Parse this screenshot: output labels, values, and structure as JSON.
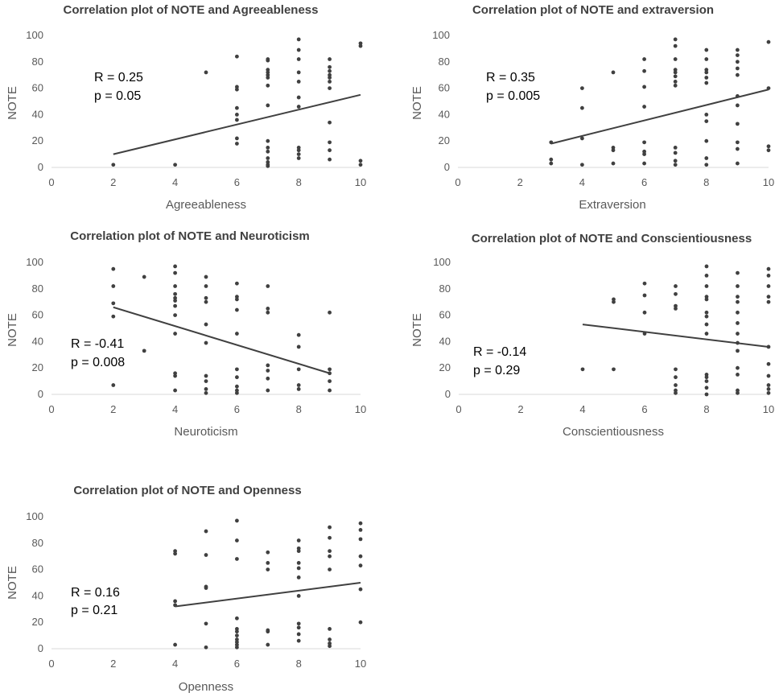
{
  "chart_data": [
    {
      "type": "scatter",
      "title": "Correlation plot of NOTE and Agreeableness",
      "xlabel": "Agreeableness",
      "ylabel": "NOTE",
      "xlim": [
        0,
        10
      ],
      "ylim": [
        0,
        100
      ],
      "xticks": [
        0,
        2,
        4,
        6,
        8,
        10
      ],
      "yticks": [
        0,
        20,
        40,
        60,
        80,
        100
      ],
      "stat_r": "R = 0.25",
      "stat_p": "p = 0.05",
      "trendline": {
        "x": [
          2,
          10
        ],
        "y": [
          10,
          55
        ]
      },
      "points": [
        [
          2,
          2
        ],
        [
          4,
          2
        ],
        [
          5,
          72
        ],
        [
          6,
          84
        ],
        [
          6,
          61
        ],
        [
          6,
          59
        ],
        [
          6,
          45
        ],
        [
          6,
          40
        ],
        [
          6,
          36
        ],
        [
          6,
          22
        ],
        [
          6,
          18
        ],
        [
          7,
          82
        ],
        [
          7,
          81
        ],
        [
          7,
          74
        ],
        [
          7,
          72
        ],
        [
          7,
          70
        ],
        [
          7,
          68
        ],
        [
          7,
          62
        ],
        [
          7,
          47
        ],
        [
          7,
          20
        ],
        [
          7,
          15
        ],
        [
          7,
          12
        ],
        [
          7,
          7
        ],
        [
          7,
          4
        ],
        [
          7,
          2
        ],
        [
          7,
          1
        ],
        [
          8,
          97
        ],
        [
          8,
          89
        ],
        [
          8,
          82
        ],
        [
          8,
          72
        ],
        [
          8,
          65
        ],
        [
          8,
          53
        ],
        [
          8,
          46
        ],
        [
          8,
          15
        ],
        [
          8,
          13
        ],
        [
          8,
          10
        ],
        [
          8,
          7
        ],
        [
          9,
          82
        ],
        [
          9,
          76
        ],
        [
          9,
          73
        ],
        [
          9,
          70
        ],
        [
          9,
          68
        ],
        [
          9,
          65
        ],
        [
          9,
          60
        ],
        [
          9,
          34
        ],
        [
          9,
          19
        ],
        [
          9,
          13
        ],
        [
          9,
          6
        ],
        [
          10,
          94
        ],
        [
          10,
          92
        ],
        [
          10,
          5
        ],
        [
          10,
          2
        ]
      ]
    },
    {
      "type": "scatter",
      "title": "Correlation plot of NOTE and extraversion",
      "xlabel": "Extraversion",
      "ylabel": "NOTE",
      "xlim": [
        0,
        10
      ],
      "ylim": [
        0,
        100
      ],
      "xticks": [
        0,
        2,
        4,
        6,
        8,
        10
      ],
      "yticks": [
        0,
        20,
        40,
        60,
        80,
        100
      ],
      "stat_r": "R = 0.35",
      "stat_p": "p = 0.005",
      "trendline": {
        "x": [
          3,
          10
        ],
        "y": [
          18,
          59
        ]
      },
      "points": [
        [
          3,
          19
        ],
        [
          3,
          6
        ],
        [
          3,
          3
        ],
        [
          4,
          60
        ],
        [
          4,
          45
        ],
        [
          4,
          22
        ],
        [
          4,
          2
        ],
        [
          5,
          72
        ],
        [
          5,
          15
        ],
        [
          5,
          13
        ],
        [
          5,
          3
        ],
        [
          6,
          82
        ],
        [
          6,
          73
        ],
        [
          6,
          61
        ],
        [
          6,
          46
        ],
        [
          6,
          19
        ],
        [
          6,
          12
        ],
        [
          6,
          10
        ],
        [
          6,
          3
        ],
        [
          7,
          97
        ],
        [
          7,
          92
        ],
        [
          7,
          82
        ],
        [
          7,
          74
        ],
        [
          7,
          72
        ],
        [
          7,
          69
        ],
        [
          7,
          65
        ],
        [
          7,
          62
        ],
        [
          7,
          15
        ],
        [
          7,
          11
        ],
        [
          7,
          5
        ],
        [
          7,
          2
        ],
        [
          8,
          89
        ],
        [
          8,
          82
        ],
        [
          8,
          74
        ],
        [
          8,
          72
        ],
        [
          8,
          68
        ],
        [
          8,
          64
        ],
        [
          8,
          40
        ],
        [
          8,
          35
        ],
        [
          8,
          20
        ],
        [
          8,
          7
        ],
        [
          8,
          2
        ],
        [
          9,
          89
        ],
        [
          9,
          85
        ],
        [
          9,
          80
        ],
        [
          9,
          75
        ],
        [
          9,
          70
        ],
        [
          9,
          54
        ],
        [
          9,
          47
        ],
        [
          9,
          33
        ],
        [
          9,
          19
        ],
        [
          9,
          14
        ],
        [
          9,
          3
        ],
        [
          10,
          95
        ],
        [
          10,
          60
        ],
        [
          10,
          16
        ],
        [
          10,
          13
        ]
      ]
    },
    {
      "type": "scatter",
      "title": "Correlation plot of NOTE and Neuroticism",
      "xlabel": "Neuroticism",
      "ylabel": "NOTE",
      "xlim": [
        0,
        10
      ],
      "ylim": [
        0,
        100
      ],
      "xticks": [
        0,
        2,
        4,
        6,
        8,
        10
      ],
      "yticks": [
        0,
        20,
        40,
        60,
        80,
        100
      ],
      "stat_r": "R = -0.41",
      "stat_p": "p = 0.008",
      "trendline": {
        "x": [
          2,
          9
        ],
        "y": [
          66,
          16
        ]
      },
      "points": [
        [
          2,
          95
        ],
        [
          2,
          82
        ],
        [
          2,
          69
        ],
        [
          2,
          59
        ],
        [
          2,
          7
        ],
        [
          3,
          89
        ],
        [
          3,
          33
        ],
        [
          4,
          97
        ],
        [
          4,
          92
        ],
        [
          4,
          82
        ],
        [
          4,
          76
        ],
        [
          4,
          73
        ],
        [
          4,
          71
        ],
        [
          4,
          67
        ],
        [
          4,
          60
        ],
        [
          4,
          46
        ],
        [
          4,
          16
        ],
        [
          4,
          14
        ],
        [
          4,
          3
        ],
        [
          5,
          89
        ],
        [
          5,
          82
        ],
        [
          5,
          73
        ],
        [
          5,
          70
        ],
        [
          5,
          53
        ],
        [
          5,
          39
        ],
        [
          5,
          14
        ],
        [
          5,
          10
        ],
        [
          5,
          4
        ],
        [
          5,
          1
        ],
        [
          6,
          84
        ],
        [
          6,
          74
        ],
        [
          6,
          72
        ],
        [
          6,
          64
        ],
        [
          6,
          46
        ],
        [
          6,
          19
        ],
        [
          6,
          13
        ],
        [
          6,
          6
        ],
        [
          6,
          3
        ],
        [
          6,
          1
        ],
        [
          7,
          82
        ],
        [
          7,
          65
        ],
        [
          7,
          62
        ],
        [
          7,
          22
        ],
        [
          7,
          18
        ],
        [
          7,
          12
        ],
        [
          7,
          3
        ],
        [
          8,
          45
        ],
        [
          8,
          36
        ],
        [
          8,
          19
        ],
        [
          8,
          7
        ],
        [
          8,
          4
        ],
        [
          9,
          62
        ],
        [
          9,
          19
        ],
        [
          9,
          16
        ],
        [
          9,
          10
        ],
        [
          9,
          3
        ]
      ]
    },
    {
      "type": "scatter",
      "title": "Correlation plot of NOTE and Conscientiousness",
      "xlabel": "Conscientiousness",
      "ylabel": "NOTE",
      "xlim": [
        0,
        10
      ],
      "ylim": [
        0,
        100
      ],
      "xticks": [
        0,
        2,
        4,
        6,
        8,
        10
      ],
      "yticks": [
        0,
        20,
        40,
        60,
        80,
        100
      ],
      "stat_r": "R = -0.14",
      "stat_p": "p = 0.29",
      "trendline": {
        "x": [
          4,
          10
        ],
        "y": [
          53,
          36
        ]
      },
      "points": [
        [
          4,
          19
        ],
        [
          5,
          72
        ],
        [
          5,
          70
        ],
        [
          5,
          19
        ],
        [
          6,
          84
        ],
        [
          6,
          75
        ],
        [
          6,
          62
        ],
        [
          6,
          46
        ],
        [
          7,
          82
        ],
        [
          7,
          76
        ],
        [
          7,
          67
        ],
        [
          7,
          65
        ],
        [
          7,
          19
        ],
        [
          7,
          13
        ],
        [
          7,
          7
        ],
        [
          7,
          3
        ],
        [
          7,
          1
        ],
        [
          8,
          97
        ],
        [
          8,
          90
        ],
        [
          8,
          82
        ],
        [
          8,
          74
        ],
        [
          8,
          72
        ],
        [
          8,
          62
        ],
        [
          8,
          59
        ],
        [
          8,
          53
        ],
        [
          8,
          46
        ],
        [
          8,
          15
        ],
        [
          8,
          13
        ],
        [
          8,
          10
        ],
        [
          8,
          5
        ],
        [
          8,
          0
        ],
        [
          9,
          92
        ],
        [
          9,
          82
        ],
        [
          9,
          74
        ],
        [
          9,
          70
        ],
        [
          9,
          62
        ],
        [
          9,
          54
        ],
        [
          9,
          46
        ],
        [
          9,
          39
        ],
        [
          9,
          33
        ],
        [
          9,
          20
        ],
        [
          9,
          15
        ],
        [
          9,
          3
        ],
        [
          9,
          1
        ],
        [
          10,
          95
        ],
        [
          10,
          90
        ],
        [
          10,
          82
        ],
        [
          10,
          74
        ],
        [
          10,
          70
        ],
        [
          10,
          36
        ],
        [
          10,
          23
        ],
        [
          10,
          14
        ],
        [
          10,
          7
        ],
        [
          10,
          4
        ],
        [
          10,
          1
        ]
      ]
    },
    {
      "type": "scatter",
      "title": "Correlation plot of NOTE and Openness",
      "xlabel": "Openness",
      "ylabel": "NOTE",
      "xlim": [
        0,
        10
      ],
      "ylim": [
        0,
        100
      ],
      "xticks": [
        0,
        2,
        4,
        6,
        8,
        10
      ],
      "yticks": [
        0,
        20,
        40,
        60,
        80,
        100
      ],
      "stat_r": "R = 0.16",
      "stat_p": "p = 0.21",
      "trendline": {
        "x": [
          4,
          10
        ],
        "y": [
          32,
          50
        ]
      },
      "points": [
        [
          4,
          74
        ],
        [
          4,
          72
        ],
        [
          4,
          36
        ],
        [
          4,
          33
        ],
        [
          4,
          3
        ],
        [
          5,
          89
        ],
        [
          5,
          71
        ],
        [
          5,
          47
        ],
        [
          5,
          46
        ],
        [
          5,
          19
        ],
        [
          5,
          1
        ],
        [
          6,
          97
        ],
        [
          6,
          82
        ],
        [
          6,
          68
        ],
        [
          6,
          23
        ],
        [
          6,
          15
        ],
        [
          6,
          13
        ],
        [
          6,
          10
        ],
        [
          6,
          7
        ],
        [
          6,
          5
        ],
        [
          6,
          3
        ],
        [
          6,
          1
        ],
        [
          7,
          73
        ],
        [
          7,
          65
        ],
        [
          7,
          60
        ],
        [
          7,
          14
        ],
        [
          7,
          13
        ],
        [
          7,
          3
        ],
        [
          8,
          82
        ],
        [
          8,
          76
        ],
        [
          8,
          74
        ],
        [
          8,
          65
        ],
        [
          8,
          61
        ],
        [
          8,
          54
        ],
        [
          8,
          40
        ],
        [
          8,
          19
        ],
        [
          8,
          16
        ],
        [
          8,
          11
        ],
        [
          8,
          6
        ],
        [
          9,
          92
        ],
        [
          9,
          84
        ],
        [
          9,
          74
        ],
        [
          9,
          70
        ],
        [
          9,
          60
        ],
        [
          9,
          15
        ],
        [
          9,
          7
        ],
        [
          9,
          4
        ],
        [
          9,
          2
        ],
        [
          10,
          95
        ],
        [
          10,
          90
        ],
        [
          10,
          83
        ],
        [
          10,
          70
        ],
        [
          10,
          63
        ],
        [
          10,
          45
        ],
        [
          10,
          20
        ]
      ]
    }
  ]
}
